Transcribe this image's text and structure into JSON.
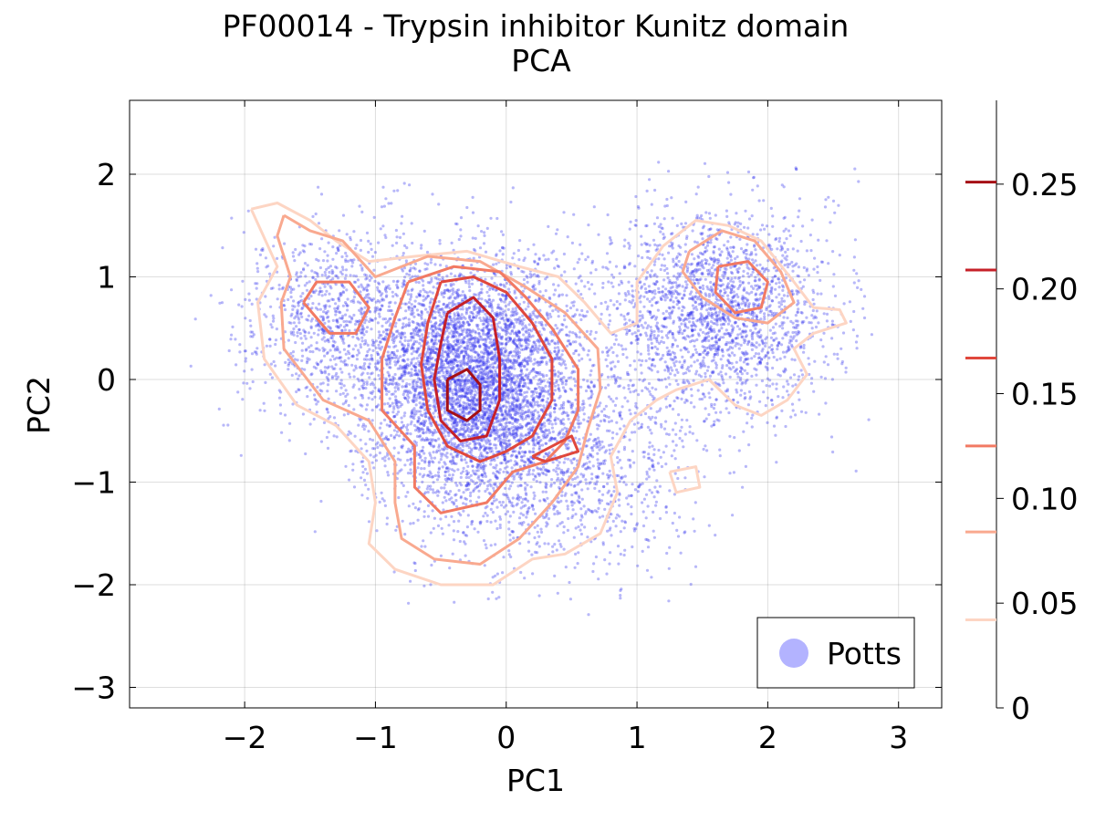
{
  "chart_data": {
    "type": "scatter",
    "title": "PF00014 - Trypsin inhibitor Kunitz domain",
    "subtitle": "PCA",
    "xlabel": "PC1",
    "ylabel": "PC2",
    "xlim": [
      -2.88,
      3.33
    ],
    "ylim": [
      -3.2,
      2.72
    ],
    "xticks": [
      -2,
      -1,
      0,
      1,
      2,
      3
    ],
    "xtick_labels": [
      "−2",
      "−1",
      "0",
      "1",
      "2",
      "3"
    ],
    "yticks": [
      -3,
      -2,
      -1,
      0,
      1,
      2
    ],
    "ytick_labels": [
      "−3",
      "−2",
      "−1",
      "0",
      "1",
      "2"
    ],
    "grid": true,
    "legend": {
      "position": "bottom-right",
      "entries": [
        {
          "name": "Potts",
          "color": "#b3b3ff"
        }
      ]
    },
    "scatter": {
      "name": "Potts",
      "color": "#3333ee",
      "approx_points": 9000
    },
    "colorbar": {
      "lim": [
        0,
        0.29
      ],
      "ticks": [
        0,
        0.05,
        0.1,
        0.15,
        0.2,
        0.25
      ],
      "tick_labels": [
        "0",
        "0.05",
        "0.10",
        "0.15",
        "0.20",
        "0.25"
      ],
      "levels": [
        0.042,
        0.084,
        0.125,
        0.167,
        0.209,
        0.251
      ],
      "level_colors": [
        "#fdd5c3",
        "#f9a98f",
        "#f27a63",
        "#e0473c",
        "#c62028",
        "#a50f15"
      ]
    },
    "contours": [
      {
        "level": 0.042,
        "paths": [
          [
            [
              -1.95,
              1.66
            ],
            [
              -1.75,
              1.72
            ],
            [
              -1.5,
              1.55
            ],
            [
              -1.3,
              1.35
            ],
            [
              -1.05,
              1.15
            ],
            [
              -0.7,
              1.2
            ],
            [
              -0.3,
              1.25
            ],
            [
              0.1,
              1.1
            ],
            [
              0.4,
              1.0
            ],
            [
              0.6,
              0.75
            ],
            [
              0.8,
              0.45
            ],
            [
              1.0,
              0.55
            ],
            [
              1.0,
              0.95
            ],
            [
              1.2,
              1.3
            ],
            [
              1.45,
              1.55
            ],
            [
              1.7,
              1.5
            ],
            [
              1.95,
              1.35
            ],
            [
              2.2,
              0.95
            ],
            [
              2.35,
              0.7
            ],
            [
              2.55,
              0.68
            ],
            [
              2.6,
              0.55
            ],
            [
              2.35,
              0.45
            ],
            [
              2.2,
              0.3
            ],
            [
              2.3,
              0.05
            ],
            [
              2.15,
              -0.2
            ],
            [
              1.95,
              -0.35
            ],
            [
              1.75,
              -0.25
            ],
            [
              1.55,
              0.0
            ],
            [
              1.3,
              -0.1
            ],
            [
              1.15,
              -0.2
            ],
            [
              0.95,
              -0.4
            ],
            [
              0.8,
              -0.75
            ],
            [
              0.85,
              -1.1
            ],
            [
              0.72,
              -1.5
            ],
            [
              0.45,
              -1.7
            ],
            [
              0.2,
              -1.75
            ],
            [
              -0.1,
              -2.0
            ],
            [
              -0.5,
              -2.0
            ],
            [
              -0.85,
              -1.85
            ],
            [
              -1.05,
              -1.6
            ],
            [
              -1.0,
              -1.2
            ],
            [
              -1.05,
              -0.8
            ],
            [
              -1.3,
              -0.45
            ],
            [
              -1.6,
              -0.25
            ],
            [
              -1.85,
              0.2
            ],
            [
              -1.9,
              0.75
            ],
            [
              -1.75,
              1.1
            ],
            [
              -1.95,
              1.66
            ]
          ],
          [
            [
              1.25,
              -0.9
            ],
            [
              1.45,
              -0.85
            ],
            [
              1.48,
              -1.05
            ],
            [
              1.3,
              -1.1
            ],
            [
              1.25,
              -0.9
            ]
          ]
        ]
      },
      {
        "level": 0.084,
        "paths": [
          [
            [
              -1.7,
              1.6
            ],
            [
              -1.5,
              1.45
            ],
            [
              -1.25,
              1.35
            ],
            [
              -1.0,
              1.0
            ],
            [
              -0.6,
              1.2
            ],
            [
              -0.2,
              1.15
            ],
            [
              0.15,
              0.9
            ],
            [
              0.45,
              0.65
            ],
            [
              0.7,
              0.3
            ],
            [
              0.72,
              -0.1
            ],
            [
              0.62,
              -0.5
            ],
            [
              0.55,
              -0.85
            ],
            [
              0.35,
              -1.2
            ],
            [
              0.1,
              -1.55
            ],
            [
              -0.2,
              -1.8
            ],
            [
              -0.55,
              -1.75
            ],
            [
              -0.8,
              -1.55
            ],
            [
              -0.85,
              -1.2
            ],
            [
              -0.85,
              -0.8
            ],
            [
              -1.05,
              -0.4
            ],
            [
              -1.4,
              -0.2
            ],
            [
              -1.7,
              0.3
            ],
            [
              -1.72,
              0.75
            ],
            [
              -1.65,
              1.0
            ],
            [
              -1.75,
              1.4
            ],
            [
              -1.7,
              1.6
            ]
          ],
          [
            [
              1.4,
              1.25
            ],
            [
              1.65,
              1.45
            ],
            [
              1.9,
              1.35
            ],
            [
              2.1,
              1.05
            ],
            [
              2.2,
              0.75
            ],
            [
              2.0,
              0.55
            ],
            [
              1.75,
              0.6
            ],
            [
              1.5,
              0.8
            ],
            [
              1.35,
              1.05
            ],
            [
              1.4,
              1.25
            ]
          ]
        ]
      },
      {
        "level": 0.125,
        "paths": [
          [
            [
              -1.55,
              0.75
            ],
            [
              -1.45,
              0.95
            ],
            [
              -1.2,
              0.95
            ],
            [
              -1.05,
              0.7
            ],
            [
              -1.15,
              0.45
            ],
            [
              -1.35,
              0.45
            ],
            [
              -1.55,
              0.75
            ]
          ],
          [
            [
              -0.75,
              0.95
            ],
            [
              -0.4,
              1.1
            ],
            [
              -0.05,
              1.05
            ],
            [
              0.15,
              0.8
            ],
            [
              0.35,
              0.5
            ],
            [
              0.55,
              0.1
            ],
            [
              0.55,
              -0.3
            ],
            [
              0.45,
              -0.6
            ],
            [
              0.3,
              -0.8
            ],
            [
              0.05,
              -0.9
            ],
            [
              -0.15,
              -1.2
            ],
            [
              -0.5,
              -1.3
            ],
            [
              -0.7,
              -1.05
            ],
            [
              -0.7,
              -0.65
            ],
            [
              -0.95,
              -0.3
            ],
            [
              -0.95,
              0.2
            ],
            [
              -0.85,
              0.6
            ],
            [
              -0.75,
              0.95
            ]
          ],
          [
            [
              1.62,
              1.1
            ],
            [
              1.85,
              1.15
            ],
            [
              2.0,
              0.95
            ],
            [
              1.95,
              0.7
            ],
            [
              1.75,
              0.65
            ],
            [
              1.6,
              0.85
            ],
            [
              1.62,
              1.1
            ]
          ]
        ]
      },
      {
        "level": 0.167,
        "paths": [
          [
            [
              -0.5,
              0.95
            ],
            [
              -0.25,
              1.0
            ],
            [
              0.0,
              0.85
            ],
            [
              0.2,
              0.55
            ],
            [
              0.35,
              0.2
            ],
            [
              0.35,
              -0.2
            ],
            [
              0.2,
              -0.55
            ],
            [
              0.0,
              -0.7
            ],
            [
              -0.2,
              -0.8
            ],
            [
              -0.45,
              -0.65
            ],
            [
              -0.6,
              -0.3
            ],
            [
              -0.65,
              0.15
            ],
            [
              -0.6,
              0.55
            ],
            [
              -0.5,
              0.95
            ]
          ],
          [
            [
              0.2,
              -0.75
            ],
            [
              0.5,
              -0.55
            ],
            [
              0.55,
              -0.7
            ],
            [
              0.3,
              -0.8
            ],
            [
              0.2,
              -0.75
            ]
          ]
        ]
      },
      {
        "level": 0.209,
        "paths": [
          [
            [
              -0.45,
              0.65
            ],
            [
              -0.25,
              0.8
            ],
            [
              -0.1,
              0.6
            ],
            [
              -0.05,
              0.2
            ],
            [
              -0.05,
              -0.2
            ],
            [
              -0.15,
              -0.55
            ],
            [
              -0.35,
              -0.6
            ],
            [
              -0.5,
              -0.4
            ],
            [
              -0.55,
              0.0
            ],
            [
              -0.5,
              0.35
            ],
            [
              -0.45,
              0.65
            ]
          ]
        ]
      },
      {
        "level": 0.251,
        "paths": [
          [
            [
              -0.45,
              0.0
            ],
            [
              -0.3,
              0.1
            ],
            [
              -0.2,
              -0.05
            ],
            [
              -0.2,
              -0.3
            ],
            [
              -0.3,
              -0.4
            ],
            [
              -0.45,
              -0.3
            ],
            [
              -0.45,
              0.0
            ]
          ]
        ]
      }
    ]
  }
}
